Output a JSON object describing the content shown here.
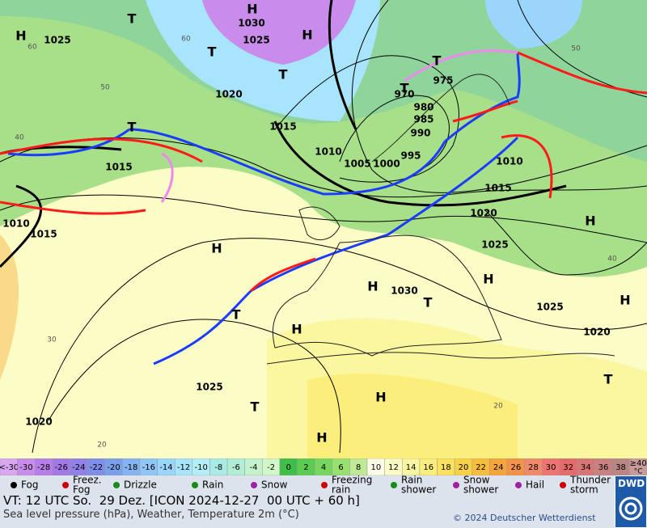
{
  "map_labels": [
    "H",
    "1030",
    "1025",
    "1025",
    "H",
    "T",
    "T",
    "T",
    "1020",
    "1015",
    "1015",
    "1010",
    "1005",
    "1000",
    "995",
    "990",
    "985",
    "980",
    "970",
    "975",
    "T",
    "T",
    "T",
    "1010",
    "1015",
    "H",
    "1015",
    "1010",
    "1020",
    "1025",
    "H",
    "H",
    "H",
    "1030",
    "T",
    "1025",
    "H",
    "1020",
    "H",
    "T",
    "1025",
    "T",
    "H",
    "1020",
    "H",
    "T",
    "H"
  ],
  "grid_labels": [
    "60",
    "50",
    "40",
    "30",
    "20",
    "60",
    "50",
    "40",
    "20"
  ],
  "temperature_scale": {
    "labels": [
      "<-30",
      "-30",
      "-28",
      "-26",
      "-24",
      "-22",
      "-20",
      "-18",
      "-16",
      "-14",
      "-12",
      "-10",
      "-8",
      "-6",
      "-4",
      "-2",
      "0",
      "2",
      "4",
      "6",
      "8",
      "10",
      "12",
      "14",
      "16",
      "18",
      "20",
      "22",
      "24",
      "26",
      "28",
      "30",
      "32",
      "34",
      "36",
      "38",
      "≥40"
    ],
    "colors": [
      "#d9a6f2",
      "#c98ceb",
      "#b77de8",
      "#a378e6",
      "#9180e8",
      "#7f8ee8",
      "#7aa0ec",
      "#86b4f2",
      "#8fc6f7",
      "#9ad6fb",
      "#a8e4fc",
      "#b4eef6",
      "#a9ece6",
      "#b2edd6",
      "#c4f2cc",
      "#d2f7c8",
      "#3fbf4a",
      "#5acc52",
      "#78d65e",
      "#98e070",
      "#bfe994",
      "#fdfde8",
      "#fcfcc6",
      "#fbf7a0",
      "#fcee7d",
      "#fbe15e",
      "#f9d247",
      "#f7bd3b",
      "#f5a53b",
      "#f39348",
      "#f28a6a",
      "#ef7373",
      "#e56a6a",
      "#d87676",
      "#c98080",
      "#b98585",
      "#c99a9a"
    ],
    "unit": "°C"
  },
  "legend": [
    {
      "lines": [
        "Fog"
      ]
    },
    {
      "lines": [
        "Freez.",
        "Fog"
      ]
    },
    {
      "lines": [
        "Drizzle"
      ]
    },
    {
      "lines": [
        "Rain"
      ]
    },
    {
      "lines": [
        "Snow"
      ]
    },
    {
      "lines": [
        "Freezing",
        "rain"
      ]
    },
    {
      "lines": [
        "Rain",
        "shower"
      ]
    },
    {
      "lines": [
        "Snow",
        "shower"
      ]
    },
    {
      "lines": [
        "Hail"
      ]
    },
    {
      "lines": [
        "Thunder",
        "storm"
      ]
    }
  ],
  "footer": {
    "valid_time": "VT: 12 UTC So.  29 Dez. [ICON 2024-12-27  00 UTC + 60 h]",
    "description": "Sea level pressure (hPa), Weather, Temperature 2m (°C)",
    "copyright": "© 2024 Deutscher Wetterdienst",
    "logo": "DWD"
  }
}
